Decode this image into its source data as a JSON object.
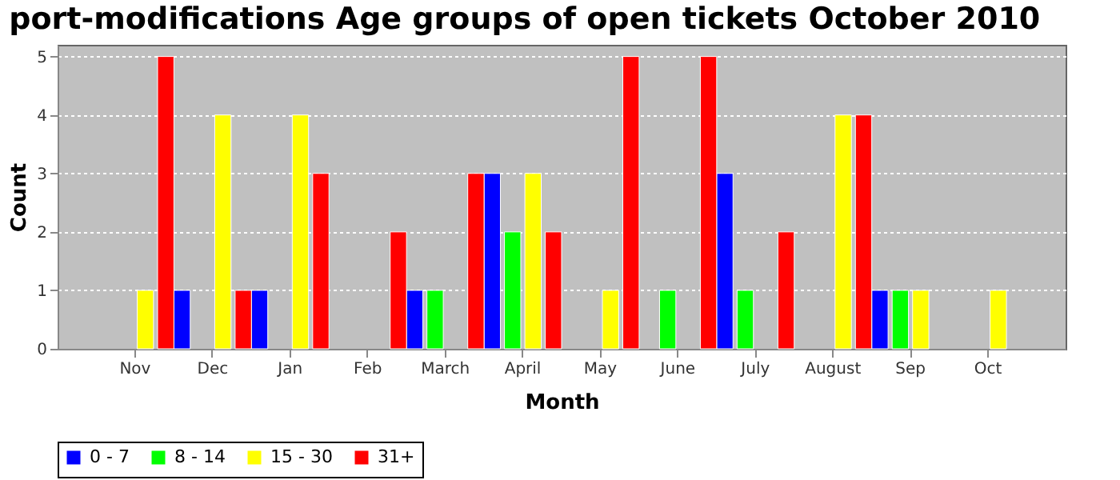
{
  "chart_data": {
    "type": "bar",
    "title": "port-modifications Age groups of open tickets October 2010",
    "xlabel": "Month",
    "ylabel": "Count",
    "categories": [
      "Nov",
      "Dec",
      "Jan",
      "Feb",
      "March",
      "April",
      "May",
      "June",
      "July",
      "August",
      "Sep",
      "Oct"
    ],
    "series": [
      {
        "name": "0 - 7",
        "color": "#0000ff",
        "values": [
          null,
          1,
          1,
          null,
          1,
          3,
          null,
          null,
          3,
          null,
          1,
          null
        ]
      },
      {
        "name": "8 - 14",
        "color": "#00ff00",
        "values": [
          null,
          null,
          null,
          null,
          1,
          2,
          null,
          1,
          1,
          null,
          1,
          null
        ]
      },
      {
        "name": "15 - 30",
        "color": "#ffff00",
        "values": [
          1,
          4,
          4,
          null,
          null,
          3,
          1,
          null,
          null,
          4,
          1,
          1
        ]
      },
      {
        "name": "31+",
        "color": "#ff0000",
        "values": [
          5,
          1,
          3,
          2,
          3,
          2,
          5,
          5,
          2,
          4,
          null,
          null
        ]
      }
    ],
    "ylim": [
      0,
      5.2
    ],
    "yticks": [
      0,
      1,
      2,
      3,
      4,
      5
    ],
    "grid": "y",
    "legend": "bottom"
  }
}
